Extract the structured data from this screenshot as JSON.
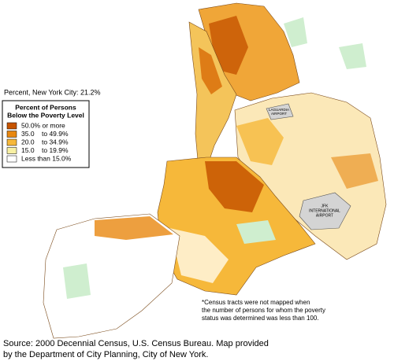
{
  "header": {
    "citywide": "Percent, New York City: 21.2%"
  },
  "legend": {
    "title_lines": [
      "Percent of Persons",
      "Below the Poverty Level"
    ],
    "items": [
      {
        "label": "50.0% or more",
        "color": "#c65400"
      },
      {
        "label": "35.0    to 49.9%",
        "color": "#e8870f"
      },
      {
        "label": "20.0    to 34.9%",
        "color": "#f6b83a"
      },
      {
        "label": "15.0    to 19.9%",
        "color": "#f7f0a4"
      },
      {
        "label": "Less than 15.0%",
        "color": "#ffffff"
      }
    ]
  },
  "map": {
    "laguardia": [
      "LAGUARDIA",
      "AIRPORT"
    ],
    "jfk": [
      "JFK",
      "INTERNATIONAL",
      "AIRPORT"
    ]
  },
  "footnote": [
    "*Census tracts were not mapped when",
    "the number of persons for whom the poverty",
    "status was determined was less than 100."
  ],
  "source": [
    "Source:  2000 Decennial Census, U.S. Census Bureau.  Map provided",
    "by the Department of City Planning, City of New York."
  ]
}
